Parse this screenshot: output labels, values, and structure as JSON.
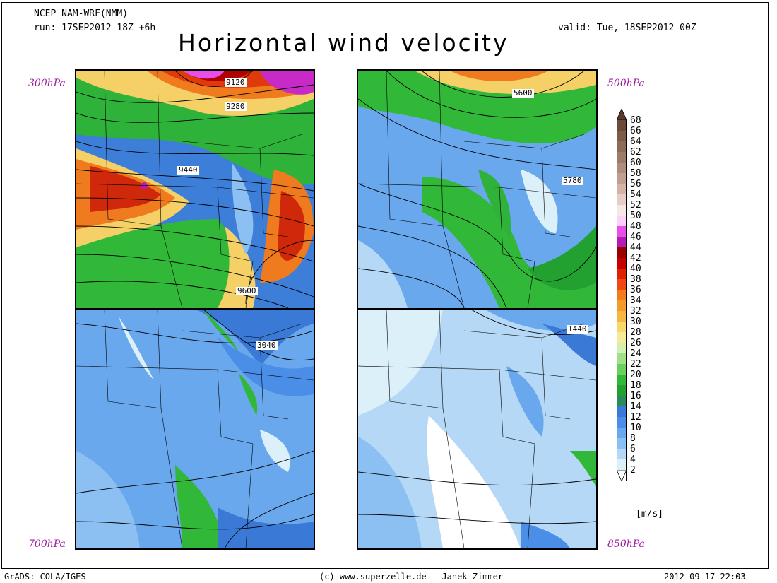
{
  "header": {
    "model": "NCEP NAM-WRF(NMM)",
    "run": "run: 17SEP2012 18Z +6h",
    "valid": "valid: Tue, 18SEP2012 00Z",
    "title": "Horizontal wind velocity"
  },
  "panels": {
    "p300": {
      "level": "300hPa",
      "contours": [
        "9120",
        "9280",
        "9440",
        "9600"
      ]
    },
    "p500": {
      "level": "500hPa",
      "contours": [
        "5600",
        "5780"
      ]
    },
    "p700": {
      "level": "700hPa",
      "contours": [
        "3040"
      ]
    },
    "p850": {
      "level": "850hPa",
      "contours": [
        "1440"
      ]
    }
  },
  "colorbar": {
    "unit": "[m/s]",
    "labels": [
      "68",
      "66",
      "64",
      "62",
      "60",
      "58",
      "56",
      "54",
      "52",
      "50",
      "48",
      "46",
      "44",
      "42",
      "40",
      "38",
      "36",
      "34",
      "32",
      "30",
      "28",
      "26",
      "24",
      "22",
      "20",
      "18",
      "16",
      "14",
      "12",
      "10",
      "8",
      "6",
      "4",
      "2"
    ],
    "colors": [
      "#6b4a3a",
      "#7e5a48",
      "#8e6a58",
      "#9e7a68",
      "#b08c7c",
      "#c29e90",
      "#d4b4a8",
      "#e6cec6",
      "#f4e8e4",
      "#fbd0fb",
      "#e84ee8",
      "#b21cb2",
      "#9a0000",
      "#c40000",
      "#e02000",
      "#f04810",
      "#f47a1a",
      "#f49a28",
      "#f6b840",
      "#f8d86a",
      "#f4eb98",
      "#d2f0b0",
      "#a0e08a",
      "#6ad060",
      "#32b838",
      "#22a030",
      "#2a8a5a",
      "#3a7ad6",
      "#4a8ee8",
      "#6aa8ee",
      "#8cc0f2",
      "#b4d8f6",
      "#dcf0fa",
      "#ffffff"
    ]
  },
  "footer": {
    "left": "GrADS: COLA/IGES",
    "center": "(c) www.superzelle.de - Janek Zimmer",
    "right": "2012-09-17-22:03"
  }
}
